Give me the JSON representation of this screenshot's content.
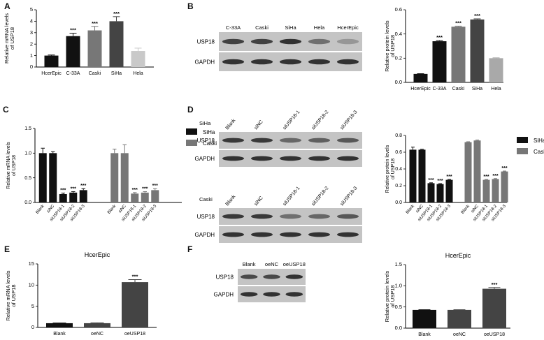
{
  "panels": {
    "A": "A",
    "B": "B",
    "C": "C",
    "D": "D",
    "E": "E",
    "F": "F"
  },
  "colors": {
    "black": "#111111",
    "dark": "#444444",
    "mid": "#777777",
    "light": "#a9a9a9",
    "lighter": "#c9c9c9",
    "blot_bg": "#c4c4c4",
    "band": "#2a2a2a"
  },
  "blots": {
    "B": {
      "lanes": [
        "C-33A",
        "Caski",
        "SiHa",
        "Hela",
        "HcerEpic"
      ],
      "rows": [
        "USP18",
        "GAPDH"
      ]
    },
    "D1": {
      "cell": "SiHa",
      "lanes": [
        "Blank",
        "siNC",
        "siUSP18-1",
        "siUSP18-2",
        "siUSP18-3"
      ],
      "rows": [
        "USP18",
        "GAPDH"
      ]
    },
    "D2": {
      "cell": "Caski",
      "lanes": [
        "Blank",
        "siNC",
        "siUSP18-1",
        "siUSP18-2",
        "siUSP18-3"
      ],
      "rows": [
        "USP18",
        "GAPDH"
      ]
    },
    "F": {
      "lanes": [
        "Blank",
        "oeNC",
        "oeUSP18"
      ],
      "rows": [
        "USP18",
        "GAPDH"
      ]
    }
  },
  "chart_data": [
    {
      "id": "A",
      "type": "bar",
      "ylabel": "Relative mRNA levels of USP18",
      "categories": [
        "HcerEpic",
        "C-33A",
        "Caski",
        "SiHa",
        "Hela"
      ],
      "values": [
        1.0,
        2.7,
        3.2,
        4.0,
        1.4
      ],
      "errors": [
        0.05,
        0.25,
        0.35,
        0.4,
        0.25
      ],
      "sig": [
        "",
        "***",
        "***",
        "***",
        ""
      ],
      "ylim": [
        0,
        5
      ],
      "yticks": [
        "0",
        "1",
        "2",
        "3",
        "4",
        "5"
      ]
    },
    {
      "id": "B",
      "type": "bar",
      "ylabel": "Relative protein levels of USP18",
      "categories": [
        "HcerEpic",
        "C-33A",
        "Caski",
        "SiHa",
        "Hela"
      ],
      "values": [
        0.07,
        0.34,
        0.46,
        0.52,
        0.2
      ],
      "errors": [
        0.002,
        0.005,
        0.005,
        0.005,
        0.003
      ],
      "sig": [
        "",
        "***",
        "***",
        "***",
        ""
      ],
      "ylim": [
        0,
        0.6
      ],
      "yticks": [
        "0.0",
        "0.2",
        "0.4",
        "0.6"
      ]
    },
    {
      "id": "C",
      "type": "bar",
      "ylabel": "Relative mRNA levels of USP18",
      "categories": [
        "Blank",
        "siNC",
        "siUSP18-1",
        "siUSP18-2",
        "siUSP18-3"
      ],
      "series": [
        {
          "name": "SiHa",
          "values": [
            1.0,
            1.0,
            0.17,
            0.2,
            0.25
          ],
          "errors": [
            0.1,
            0.03,
            0.02,
            0.02,
            0.03
          ],
          "sig": [
            "",
            "",
            "***",
            "***",
            "***"
          ]
        },
        {
          "name": "Caski",
          "values": [
            1.0,
            1.0,
            0.18,
            0.2,
            0.25
          ],
          "errors": [
            0.08,
            0.17,
            0.02,
            0.02,
            0.03
          ],
          "sig": [
            "",
            "",
            "***",
            "***",
            "***"
          ]
        }
      ],
      "ylim": [
        0,
        1.5
      ],
      "yticks": [
        "0.0",
        "0.5",
        "1.0",
        "1.5"
      ]
    },
    {
      "id": "D",
      "type": "bar",
      "ylabel": "Relative protein levels of USP18",
      "categories": [
        "Blank",
        "siNC",
        "siUSP18-1",
        "siUSP18-2",
        "siUSP18-3"
      ],
      "series": [
        {
          "name": "SiHa",
          "values": [
            0.63,
            0.63,
            0.23,
            0.22,
            0.27
          ],
          "errors": [
            0.03,
            0.005,
            0.005,
            0.005,
            0.005
          ],
          "sig": [
            "",
            "",
            "***",
            "***",
            "***"
          ]
        },
        {
          "name": "Caski",
          "values": [
            0.72,
            0.74,
            0.27,
            0.28,
            0.37
          ],
          "errors": [
            0.005,
            0.005,
            0.005,
            0.005,
            0.005
          ],
          "sig": [
            "",
            "",
            "***",
            "***",
            "***"
          ]
        }
      ],
      "ylim": [
        0,
        0.8
      ],
      "yticks": [
        "0.0",
        "0.2",
        "0.4",
        "0.6",
        "0.8"
      ]
    },
    {
      "id": "E",
      "type": "bar",
      "title": "HcerEpic",
      "ylabel": "Relative mRNA levels of USP18",
      "categories": [
        "Blank",
        "oeNC",
        "oeUSP18"
      ],
      "values": [
        1.0,
        1.0,
        10.7
      ],
      "errors": [
        0.05,
        0.1,
        0.6
      ],
      "sig": [
        "",
        "",
        "***"
      ],
      "ylim": [
        0,
        15
      ],
      "yticks": [
        "0",
        "5",
        "10",
        "15"
      ]
    },
    {
      "id": "F",
      "type": "bar",
      "title": "HcerEpic",
      "ylabel": "Relative protein levels of USP18",
      "categories": [
        "Blank",
        "oeNC",
        "oeUSP18"
      ],
      "values": [
        0.43,
        0.43,
        0.93
      ],
      "errors": [
        0.005,
        0.005,
        0.03
      ],
      "sig": [
        "",
        "",
        "***"
      ],
      "ylim": [
        0,
        1.5
      ],
      "yticks": [
        "0.0",
        "0.5",
        "1.0",
        "1.5"
      ]
    }
  ]
}
